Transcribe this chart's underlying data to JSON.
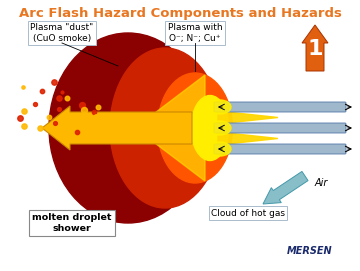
{
  "title": "Arc Flash Hazard Components and Hazards",
  "title_color": "#E87722",
  "title_fontsize": 9.5,
  "bg_color": "#FFFFFF",
  "label_plasma_dust": "Plasma \"dust\"\n(CuO smoke)",
  "label_plasma_with": "Plasma with\nO⁻; N⁻; Cu⁺",
  "label_air": "Air",
  "label_cloud": "Cloud of hot gas",
  "label_molten": "molten droplet\nshower",
  "label_number": "1",
  "dark_red": "#8B0000",
  "orange_red": "#CC2200",
  "bright_orange": "#FF5500",
  "yellow": "#FFEE00",
  "yellow2": "#FFD700",
  "arrow_yellow": "#FFB800",
  "arrow_orange": "#E06010",
  "air_arrow_color": "#88BEC8",
  "bus_bar_color": "#A0B8CC",
  "text_box_color": "#FFFFFF",
  "mersen_color": "#1A2A6C"
}
